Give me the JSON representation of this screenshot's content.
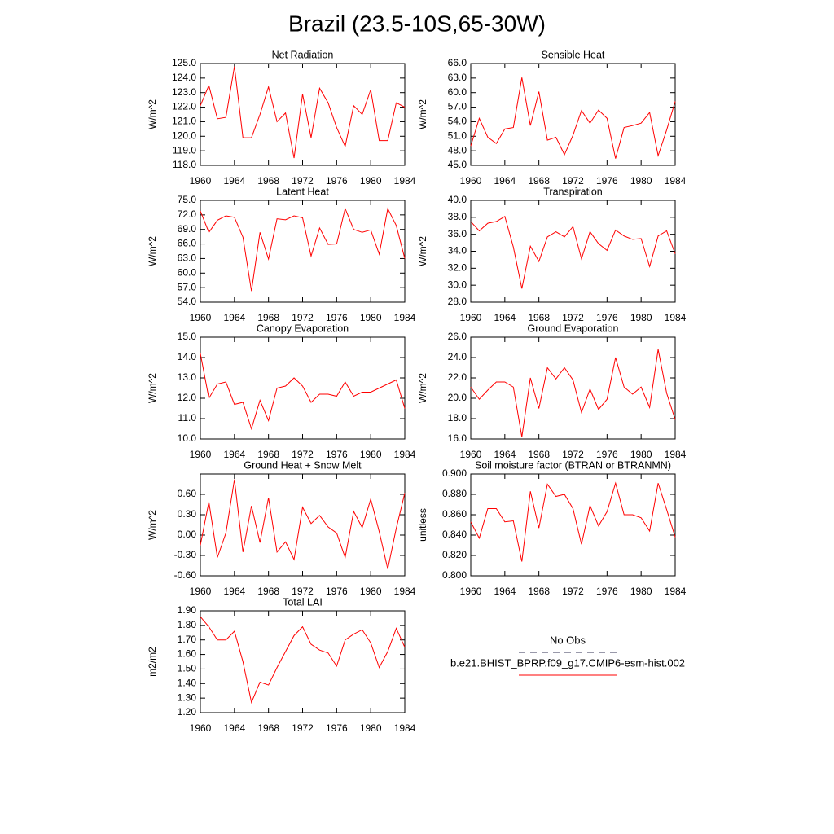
{
  "title": "Brazil (23.5-10S,65-30W)",
  "legend": [
    {
      "name": "No Obs",
      "color": "#333355",
      "dash": true
    },
    {
      "name": "b.e21.BHIST_BPRP.f09_g17.CMIP6-esm-hist.002",
      "color": "#ff0000"
    }
  ],
  "chart_data": [
    {
      "type": "line",
      "title": "Net Radiation",
      "ylabel": "W/m^2",
      "x": [
        1960,
        1961,
        1962,
        1963,
        1964,
        1965,
        1966,
        1967,
        1968,
        1969,
        1970,
        1971,
        1972,
        1973,
        1974,
        1975,
        1976,
        1977,
        1978,
        1979,
        1980,
        1981,
        1982,
        1983,
        1984
      ],
      "series": [
        {
          "color": "#ff0000",
          "values": [
            122.1,
            123.5,
            121.2,
            121.3,
            124.8,
            119.9,
            119.9,
            121.5,
            123.4,
            121.0,
            121.6,
            118.5,
            122.9,
            119.9,
            123.3,
            122.3,
            120.6,
            119.3,
            122.1,
            121.5,
            123.2,
            119.7,
            119.7,
            122.3,
            122.0
          ]
        }
      ],
      "xlim": [
        1960,
        1984
      ],
      "xticks": [
        1960,
        1964,
        1968,
        1972,
        1976,
        1980,
        1984
      ],
      "ylim": [
        118,
        125
      ],
      "yticks": [
        {
          "value": 118,
          "label": "118.0"
        },
        {
          "value": 119,
          "label": "119.0"
        },
        {
          "value": 120,
          "label": "120.0"
        },
        {
          "value": 121,
          "label": "121.0"
        },
        {
          "value": 122,
          "label": "122.0"
        },
        {
          "value": 123,
          "label": "123.0"
        },
        {
          "value": 124,
          "label": "124.0"
        },
        {
          "value": 125,
          "label": "125.0"
        }
      ]
    },
    {
      "type": "line",
      "title": "Sensible Heat",
      "ylabel": "W/m^2",
      "x": [
        1960,
        1961,
        1962,
        1963,
        1964,
        1965,
        1966,
        1967,
        1968,
        1969,
        1970,
        1971,
        1972,
        1973,
        1974,
        1975,
        1976,
        1977,
        1978,
        1979,
        1980,
        1981,
        1982,
        1983,
        1984
      ],
      "series": [
        {
          "color": "#ff0000",
          "values": [
            49.0,
            54.7,
            50.8,
            49.5,
            52.5,
            52.8,
            63.1,
            53.2,
            60.2,
            50.2,
            50.8,
            47.2,
            51.2,
            56.3,
            53.7,
            56.4,
            54.7,
            46.4,
            52.8,
            53.2,
            53.7,
            55.9,
            47.0,
            52.3,
            58.2
          ]
        }
      ],
      "xlim": [
        1960,
        1984
      ],
      "xticks": [
        1960,
        1964,
        1968,
        1972,
        1976,
        1980,
        1984
      ],
      "ylim": [
        45,
        66
      ],
      "yticks": [
        {
          "value": 45,
          "label": "45.0"
        },
        {
          "value": 48,
          "label": "48.0"
        },
        {
          "value": 51,
          "label": "51.0"
        },
        {
          "value": 54,
          "label": "54.0"
        },
        {
          "value": 57,
          "label": "57.0"
        },
        {
          "value": 60,
          "label": "60.0"
        },
        {
          "value": 63,
          "label": "63.0"
        },
        {
          "value": 66,
          "label": "66.0"
        }
      ]
    },
    {
      "type": "line",
      "title": "Latent Heat",
      "ylabel": "W/m^2",
      "x": [
        1960,
        1961,
        1962,
        1963,
        1964,
        1965,
        1966,
        1967,
        1968,
        1969,
        1970,
        1971,
        1972,
        1973,
        1974,
        1975,
        1976,
        1977,
        1978,
        1979,
        1980,
        1981,
        1982,
        1983,
        1984
      ],
      "series": [
        {
          "color": "#ff0000",
          "values": [
            72.8,
            68.4,
            70.9,
            71.8,
            71.5,
            67.4,
            56.3,
            68.4,
            62.9,
            71.2,
            71.0,
            71.8,
            71.4,
            63.5,
            69.3,
            65.9,
            66.0,
            73.3,
            69.0,
            68.4,
            68.9,
            63.9,
            73.3,
            69.8,
            63.0
          ]
        }
      ],
      "xlim": [
        1960,
        1984
      ],
      "xticks": [
        1960,
        1964,
        1968,
        1972,
        1976,
        1980,
        1984
      ],
      "ylim": [
        54,
        75
      ],
      "yticks": [
        {
          "value": 54,
          "label": "54.0"
        },
        {
          "value": 57,
          "label": "57.0"
        },
        {
          "value": 60,
          "label": "60.0"
        },
        {
          "value": 63,
          "label": "63.0"
        },
        {
          "value": 66,
          "label": "66.0"
        },
        {
          "value": 69,
          "label": "69.0"
        },
        {
          "value": 72,
          "label": "72.0"
        },
        {
          "value": 75,
          "label": "75.0"
        }
      ]
    },
    {
      "type": "line",
      "title": "Transpiration",
      "ylabel": "W/m^2",
      "x": [
        1960,
        1961,
        1962,
        1963,
        1964,
        1965,
        1966,
        1967,
        1968,
        1969,
        1970,
        1971,
        1972,
        1973,
        1974,
        1975,
        1976,
        1977,
        1978,
        1979,
        1980,
        1981,
        1982,
        1983,
        1984
      ],
      "series": [
        {
          "color": "#ff0000",
          "values": [
            37.5,
            36.4,
            37.3,
            37.5,
            38.1,
            34.5,
            29.6,
            34.6,
            32.8,
            35.7,
            36.3,
            35.7,
            36.9,
            33.1,
            36.3,
            34.9,
            34.1,
            36.5,
            35.8,
            35.4,
            35.5,
            32.2,
            35.8,
            36.4,
            33.7
          ]
        }
      ],
      "xlim": [
        1960,
        1984
      ],
      "xticks": [
        1960,
        1964,
        1968,
        1972,
        1976,
        1980,
        1984
      ],
      "ylim": [
        28,
        40
      ],
      "yticks": [
        {
          "value": 28,
          "label": "28.0"
        },
        {
          "value": 30,
          "label": "30.0"
        },
        {
          "value": 32,
          "label": "32.0"
        },
        {
          "value": 34,
          "label": "34.0"
        },
        {
          "value": 36,
          "label": "36.0"
        },
        {
          "value": 38,
          "label": "38.0"
        },
        {
          "value": 40,
          "label": "40.0"
        }
      ]
    },
    {
      "type": "line",
      "title": "Canopy Evaporation",
      "ylabel": "W/m^2",
      "x": [
        1960,
        1961,
        1962,
        1963,
        1964,
        1965,
        1966,
        1967,
        1968,
        1969,
        1970,
        1971,
        1972,
        1973,
        1974,
        1975,
        1976,
        1977,
        1978,
        1979,
        1980,
        1981,
        1982,
        1983,
        1984
      ],
      "series": [
        {
          "color": "#ff0000",
          "values": [
            14.2,
            12.0,
            12.7,
            12.8,
            11.7,
            11.8,
            10.5,
            11.9,
            10.9,
            12.5,
            12.6,
            13.0,
            12.6,
            11.8,
            12.2,
            12.2,
            12.1,
            12.8,
            12.1,
            12.3,
            12.3,
            12.5,
            12.7,
            12.9,
            11.5
          ]
        }
      ],
      "xlim": [
        1960,
        1984
      ],
      "xticks": [
        1960,
        1964,
        1968,
        1972,
        1976,
        1980,
        1984
      ],
      "ylim": [
        10,
        15
      ],
      "yticks": [
        {
          "value": 10,
          "label": "10.0"
        },
        {
          "value": 11,
          "label": "11.0"
        },
        {
          "value": 12,
          "label": "12.0"
        },
        {
          "value": 13,
          "label": "13.0"
        },
        {
          "value": 14,
          "label": "14.0"
        },
        {
          "value": 15,
          "label": "15.0"
        }
      ]
    },
    {
      "type": "line",
      "title": "Ground Evaporation",
      "ylabel": "W/m^2",
      "x": [
        1960,
        1961,
        1962,
        1963,
        1964,
        1965,
        1966,
        1967,
        1968,
        1969,
        1970,
        1971,
        1972,
        1973,
        1974,
        1975,
        1976,
        1977,
        1978,
        1979,
        1980,
        1981,
        1982,
        1983,
        1984
      ],
      "series": [
        {
          "color": "#ff0000",
          "values": [
            21.1,
            19.9,
            20.8,
            21.6,
            21.6,
            21.1,
            16.2,
            22.0,
            19.0,
            23.0,
            21.9,
            23.0,
            21.8,
            18.6,
            20.9,
            18.9,
            19.9,
            24.0,
            21.1,
            20.4,
            21.1,
            19.1,
            24.8,
            20.5,
            17.9
          ]
        }
      ],
      "xlim": [
        1960,
        1984
      ],
      "xticks": [
        1960,
        1964,
        1968,
        1972,
        1976,
        1980,
        1984
      ],
      "ylim": [
        16,
        26
      ],
      "yticks": [
        {
          "value": 16,
          "label": "16.0"
        },
        {
          "value": 18,
          "label": "18.0"
        },
        {
          "value": 20,
          "label": "20.0"
        },
        {
          "value": 22,
          "label": "22.0"
        },
        {
          "value": 24,
          "label": "24.0"
        },
        {
          "value": 26,
          "label": "26.0"
        }
      ]
    },
    {
      "type": "line",
      "title": "Ground Heat + Snow Melt",
      "ylabel": "W/m^2",
      "x": [
        1960,
        1961,
        1962,
        1963,
        1964,
        1965,
        1966,
        1967,
        1968,
        1969,
        1970,
        1971,
        1972,
        1973,
        1974,
        1975,
        1976,
        1977,
        1978,
        1979,
        1980,
        1981,
        1982,
        1983,
        1984
      ],
      "series": [
        {
          "color": "#ff0000",
          "values": [
            -0.15,
            0.49,
            -0.33,
            0.03,
            0.82,
            -0.25,
            0.43,
            -0.11,
            0.55,
            -0.25,
            -0.1,
            -0.36,
            0.41,
            0.17,
            0.29,
            0.12,
            0.03,
            -0.33,
            0.35,
            0.11,
            0.53,
            0.05,
            -0.5,
            0.1,
            0.62
          ]
        }
      ],
      "xlim": [
        1960,
        1984
      ],
      "xticks": [
        1960,
        1964,
        1968,
        1972,
        1976,
        1980,
        1984
      ],
      "ylim": [
        -0.6,
        0.9
      ],
      "yticks": [
        {
          "value": -0.6,
          "label": "-0.60"
        },
        {
          "value": -0.3,
          "label": "-0.30"
        },
        {
          "value": 0,
          "label": "0.00"
        },
        {
          "value": 0.3,
          "label": "0.30"
        },
        {
          "value": 0.6,
          "label": "0.60"
        }
      ]
    },
    {
      "type": "line",
      "title": "Soil moisture factor (BTRAN or BTRANMN)",
      "ylabel": "unitless",
      "x": [
        1960,
        1961,
        1962,
        1963,
        1964,
        1965,
        1966,
        1967,
        1968,
        1969,
        1970,
        1971,
        1972,
        1973,
        1974,
        1975,
        1976,
        1977,
        1978,
        1979,
        1980,
        1981,
        1982,
        1983,
        1984
      ],
      "series": [
        {
          "color": "#ff0000",
          "values": [
            0.853,
            0.837,
            0.866,
            0.866,
            0.853,
            0.854,
            0.814,
            0.883,
            0.847,
            0.89,
            0.878,
            0.88,
            0.866,
            0.831,
            0.869,
            0.849,
            0.863,
            0.891,
            0.86,
            0.86,
            0.857,
            0.844,
            0.891,
            0.865,
            0.838
          ]
        }
      ],
      "xlim": [
        1960,
        1984
      ],
      "xticks": [
        1960,
        1964,
        1968,
        1972,
        1976,
        1980,
        1984
      ],
      "ylim": [
        0.8,
        0.9
      ],
      "yticks": [
        {
          "value": 0.8,
          "label": "0.800"
        },
        {
          "value": 0.82,
          "label": "0.820"
        },
        {
          "value": 0.84,
          "label": "0.840"
        },
        {
          "value": 0.86,
          "label": "0.860"
        },
        {
          "value": 0.88,
          "label": "0.880"
        },
        {
          "value": 0.9,
          "label": "0.900"
        }
      ]
    },
    {
      "type": "line",
      "title": "Total LAI",
      "ylabel": "m2/m2",
      "x": [
        1960,
        1961,
        1962,
        1963,
        1964,
        1965,
        1966,
        1967,
        1968,
        1969,
        1970,
        1971,
        1972,
        1973,
        1974,
        1975,
        1976,
        1977,
        1978,
        1979,
        1980,
        1981,
        1982,
        1983,
        1984
      ],
      "series": [
        {
          "color": "#ff0000",
          "values": [
            1.86,
            1.79,
            1.7,
            1.7,
            1.76,
            1.55,
            1.27,
            1.41,
            1.39,
            1.51,
            1.62,
            1.73,
            1.79,
            1.67,
            1.63,
            1.61,
            1.52,
            1.7,
            1.74,
            1.77,
            1.68,
            1.51,
            1.62,
            1.78,
            1.65
          ]
        }
      ],
      "xlim": [
        1960,
        1984
      ],
      "xticks": [
        1960,
        1964,
        1968,
        1972,
        1976,
        1980,
        1984
      ],
      "ylim": [
        1.2,
        1.9
      ],
      "yticks": [
        {
          "value": 1.2,
          "label": "1.20"
        },
        {
          "value": 1.3,
          "label": "1.30"
        },
        {
          "value": 1.4,
          "label": "1.40"
        },
        {
          "value": 1.5,
          "label": "1.50"
        },
        {
          "value": 1.6,
          "label": "1.60"
        },
        {
          "value": 1.7,
          "label": "1.70"
        },
        {
          "value": 1.8,
          "label": "1.80"
        },
        {
          "value": 1.9,
          "label": "1.90"
        }
      ]
    }
  ]
}
